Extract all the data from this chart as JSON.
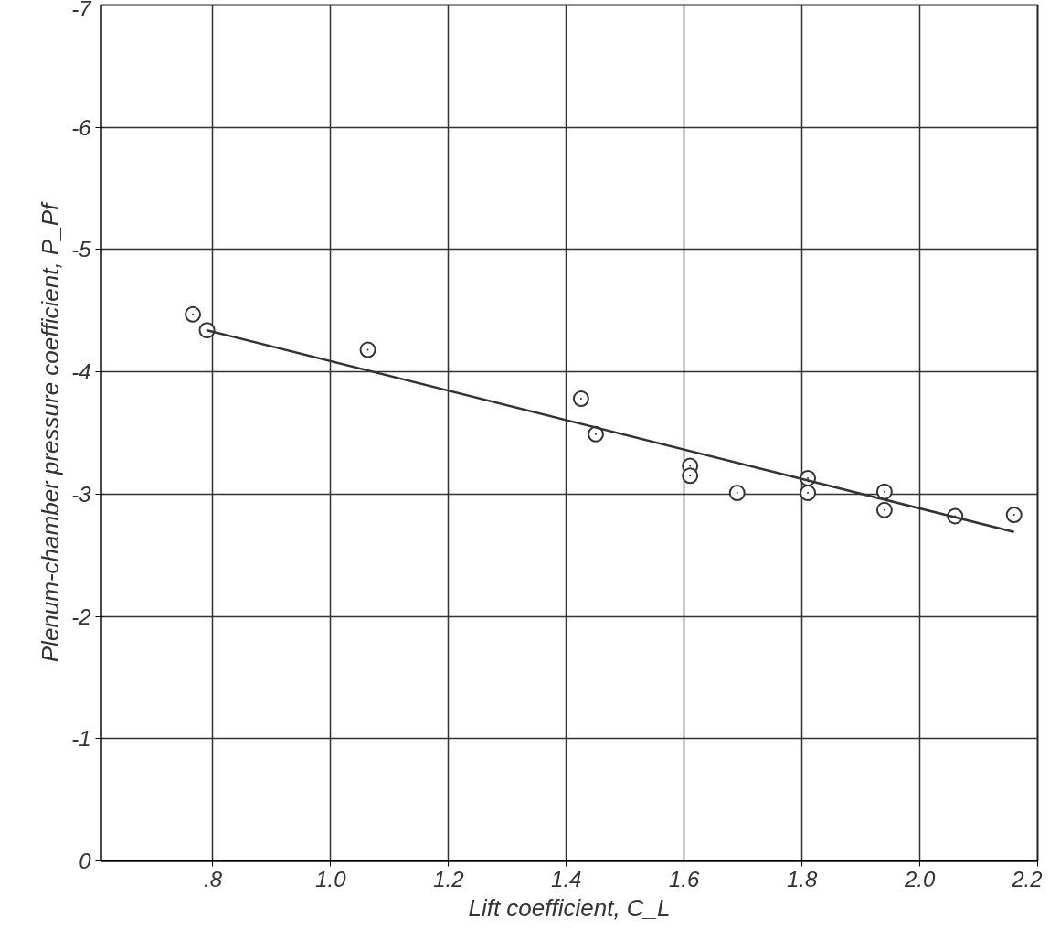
{
  "chart_data": {
    "type": "scatter",
    "xlabel": "Lift coefficient, C_L",
    "ylabel": "Plenum-chamber pressure coefficient, P_Pf",
    "xlim": [
      0.61,
      2.2
    ],
    "ylim": [
      0,
      -7
    ],
    "xticks": [
      {
        "value": 0.8,
        "label": ".8"
      },
      {
        "value": 1.0,
        "label": "1.0"
      },
      {
        "value": 1.2,
        "label": "1.2"
      },
      {
        "value": 1.4,
        "label": "1.4"
      },
      {
        "value": 1.6,
        "label": "1.6"
      },
      {
        "value": 1.8,
        "label": "1.8"
      },
      {
        "value": 2.0,
        "label": "2.0"
      },
      {
        "value": 2.2,
        "label": "2.2"
      }
    ],
    "yticks": [
      0,
      -1,
      -2,
      -3,
      -4,
      -5,
      -6,
      -7
    ],
    "grid": true,
    "series": [
      {
        "marker": "circle",
        "color": "#333333",
        "x": [
          0.766,
          0.79,
          1.063,
          1.425,
          1.45,
          1.61,
          1.61,
          1.69,
          1.81,
          1.81,
          1.94,
          1.94,
          2.06,
          2.16
        ],
        "values": [
          -4.47,
          -4.34,
          -4.18,
          -3.78,
          -3.49,
          -3.23,
          -3.15,
          -3.01,
          -3.13,
          -3.01,
          -3.02,
          -2.87,
          -2.82,
          -2.83
        ]
      },
      {
        "type": "line",
        "color": "#333333",
        "x": [
          0.79,
          2.16
        ],
        "values": [
          -4.34,
          -2.69
        ]
      }
    ]
  }
}
